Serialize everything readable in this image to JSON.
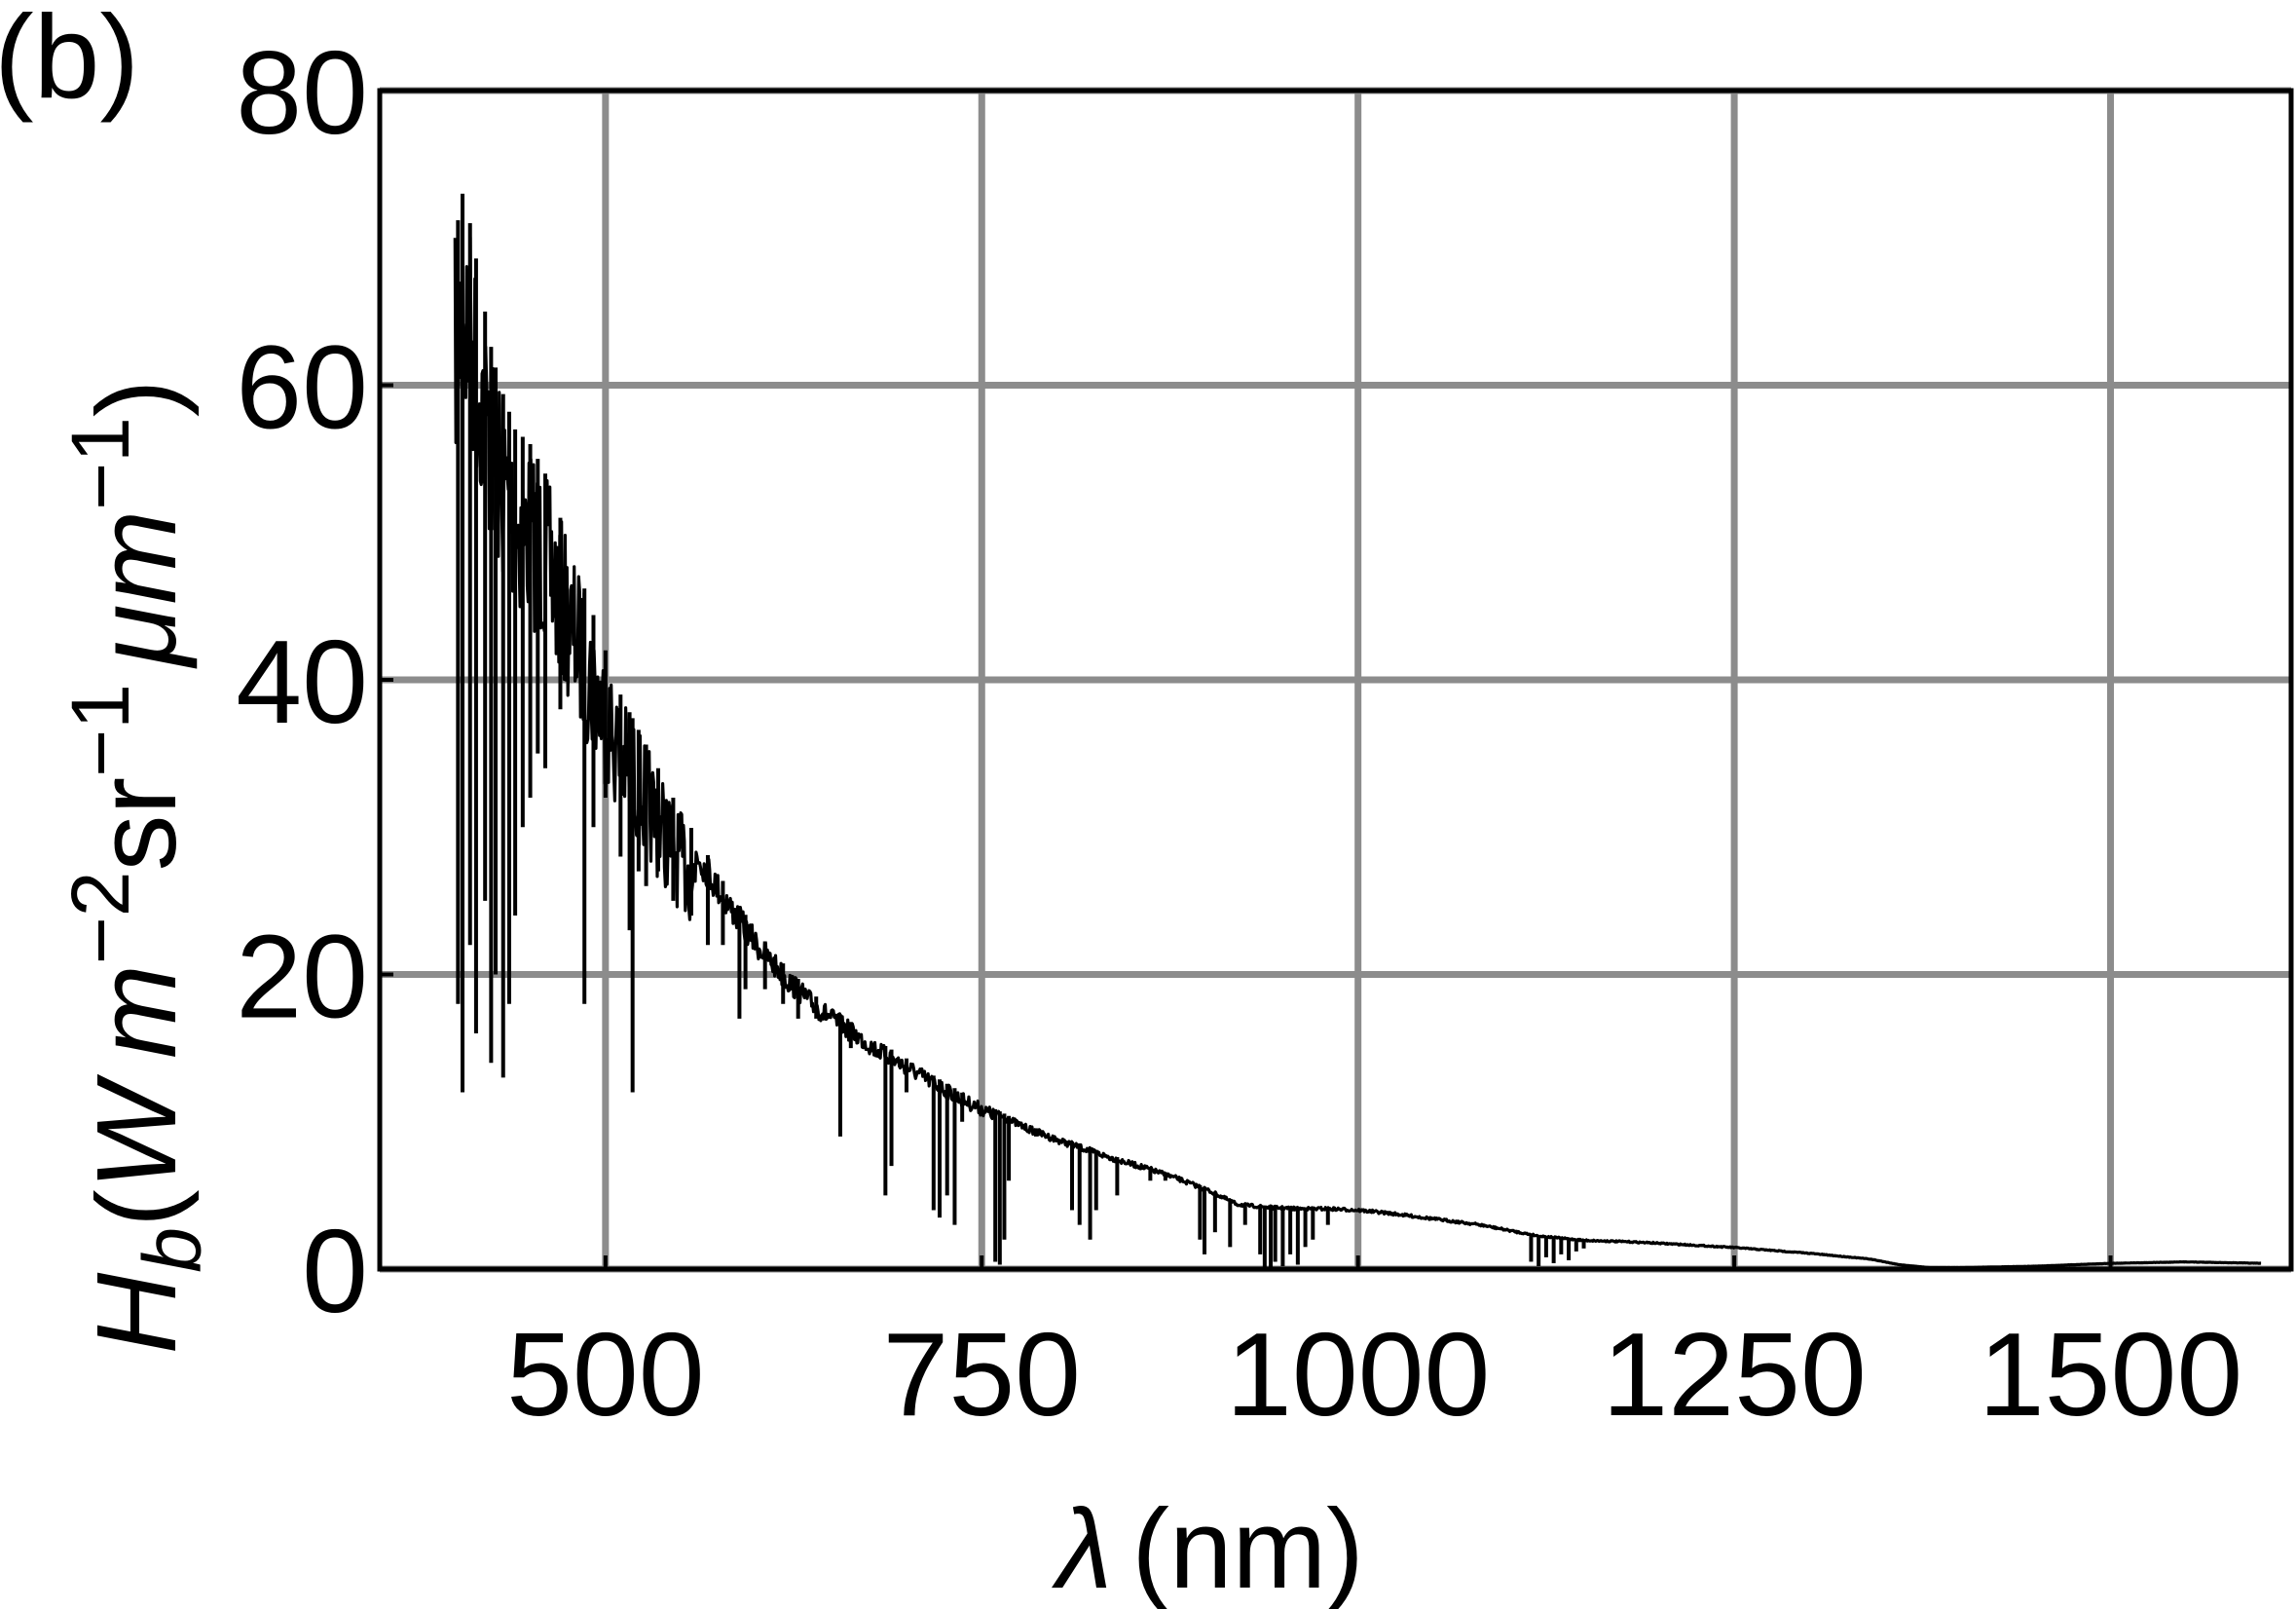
{
  "panel_label": "(b)",
  "chart_data": {
    "type": "line",
    "title": "",
    "xlabel": {
      "symbol": "λ",
      "unit": "(nm)"
    },
    "ylabel": {
      "symbol": "H",
      "subscript": "b",
      "open": "(",
      "w": "W",
      "m": "m",
      "m_exp": "−2",
      "sr": "sr",
      "sr_exp": "−1",
      "um": "μm",
      "um_exp": "−1",
      "close": ")"
    },
    "xlim": [
      350,
      1620
    ],
    "ylim": [
      0,
      80
    ],
    "xticks": [
      500,
      750,
      1000,
      1250,
      1500
    ],
    "yticks": [
      0,
      20,
      40,
      60,
      80
    ],
    "grid": true,
    "series": [
      {
        "color": "#000000",
        "envelope": {
          "x": [
            400,
            405,
            410,
            415,
            420,
            425,
            430,
            440,
            450,
            460,
            470,
            480,
            490,
            500,
            510,
            520,
            530,
            540,
            550,
            560,
            580,
            600,
            620,
            640,
            660,
            680,
            700,
            720,
            740,
            760,
            780,
            800,
            820,
            840,
            860,
            880,
            900,
            920,
            940,
            960,
            980,
            1000,
            1020,
            1050,
            1080,
            1100,
            1120,
            1150,
            1180,
            1200,
            1250,
            1300,
            1340,
            1360,
            1380,
            1400,
            1450,
            1500,
            1550,
            1600
          ],
          "y": [
            70,
            73,
            71,
            68,
            65,
            62,
            60,
            57,
            56,
            54,
            51,
            48,
            45,
            42,
            39,
            37,
            35,
            33,
            31,
            29.5,
            26,
            23,
            20.5,
            18.5,
            17,
            15.5,
            14.3,
            13,
            11.8,
            10.8,
            9.8,
            9,
            8.3,
            7.6,
            7,
            6.3,
            5.5,
            4.5,
            4.3,
            4.2,
            4.2,
            4.1,
            3.9,
            3.5,
            3.1,
            2.7,
            2.3,
            2.0,
            1.9,
            1.8,
            1.5,
            1.1,
            0.7,
            0.3,
            0.1,
            0.1,
            0.2,
            0.4,
            0.5,
            0.4
          ]
        },
        "dips": [
          {
            "x": 402,
            "y": 18
          },
          {
            "x": 405,
            "y": 12
          },
          {
            "x": 410,
            "y": 22
          },
          {
            "x": 414,
            "y": 16
          },
          {
            "x": 420,
            "y": 25
          },
          {
            "x": 424,
            "y": 14
          },
          {
            "x": 427,
            "y": 20
          },
          {
            "x": 432,
            "y": 13
          },
          {
            "x": 436,
            "y": 18
          },
          {
            "x": 440,
            "y": 24
          },
          {
            "x": 445,
            "y": 30
          },
          {
            "x": 450,
            "y": 32
          },
          {
            "x": 455,
            "y": 35
          },
          {
            "x": 460,
            "y": 34
          },
          {
            "x": 470,
            "y": 38
          },
          {
            "x": 486,
            "y": 18
          },
          {
            "x": 492,
            "y": 30
          },
          {
            "x": 500,
            "y": 32
          },
          {
            "x": 510,
            "y": 28
          },
          {
            "x": 516,
            "y": 23
          },
          {
            "x": 518,
            "y": 12
          },
          {
            "x": 522,
            "y": 27
          },
          {
            "x": 527,
            "y": 26
          },
          {
            "x": 535,
            "y": 27
          },
          {
            "x": 545,
            "y": 25
          },
          {
            "x": 557,
            "y": 24
          },
          {
            "x": 568,
            "y": 22
          },
          {
            "x": 578,
            "y": 22
          },
          {
            "x": 589,
            "y": 17
          },
          {
            "x": 593,
            "y": 19
          },
          {
            "x": 606,
            "y": 19
          },
          {
            "x": 618,
            "y": 18
          },
          {
            "x": 628,
            "y": 17
          },
          {
            "x": 640,
            "y": 17
          },
          {
            "x": 656,
            "y": 9
          },
          {
            "x": 663,
            "y": 15
          },
          {
            "x": 686,
            "y": 5
          },
          {
            "x": 690,
            "y": 7
          },
          {
            "x": 700,
            "y": 12
          },
          {
            "x": 718,
            "y": 4
          },
          {
            "x": 722,
            "y": 3.5
          },
          {
            "x": 727,
            "y": 5
          },
          {
            "x": 732,
            "y": 3
          },
          {
            "x": 737,
            "y": 10
          },
          {
            "x": 759,
            "y": 0.5
          },
          {
            "x": 762,
            "y": 0.3
          },
          {
            "x": 765,
            "y": 2
          },
          {
            "x": 768,
            "y": 6
          },
          {
            "x": 786,
            "y": 9
          },
          {
            "x": 810,
            "y": 4
          },
          {
            "x": 815,
            "y": 3
          },
          {
            "x": 822,
            "y": 2
          },
          {
            "x": 826,
            "y": 4
          },
          {
            "x": 840,
            "y": 5
          },
          {
            "x": 862,
            "y": 6
          },
          {
            "x": 872,
            "y": 6
          },
          {
            "x": 895,
            "y": 2
          },
          {
            "x": 898,
            "y": 1
          },
          {
            "x": 905,
            "y": 2.5
          },
          {
            "x": 915,
            "y": 1.5
          },
          {
            "x": 925,
            "y": 3
          },
          {
            "x": 935,
            "y": 1
          },
          {
            "x": 938,
            "y": 0.1
          },
          {
            "x": 942,
            "y": 0.1
          },
          {
            "x": 945,
            "y": 0.5
          },
          {
            "x": 950,
            "y": 0.2
          },
          {
            "x": 955,
            "y": 1
          },
          {
            "x": 960,
            "y": 0.3
          },
          {
            "x": 965,
            "y": 1.5
          },
          {
            "x": 970,
            "y": 2
          },
          {
            "x": 980,
            "y": 3
          },
          {
            "x": 1115,
            "y": 0.5
          },
          {
            "x": 1120,
            "y": 0.2
          },
          {
            "x": 1125,
            "y": 0.8
          },
          {
            "x": 1130,
            "y": 0.4
          },
          {
            "x": 1135,
            "y": 1
          },
          {
            "x": 1140,
            "y": 0.6
          },
          {
            "x": 1145,
            "y": 1.2
          },
          {
            "x": 1150,
            "y": 1.4
          }
        ]
      }
    ]
  }
}
